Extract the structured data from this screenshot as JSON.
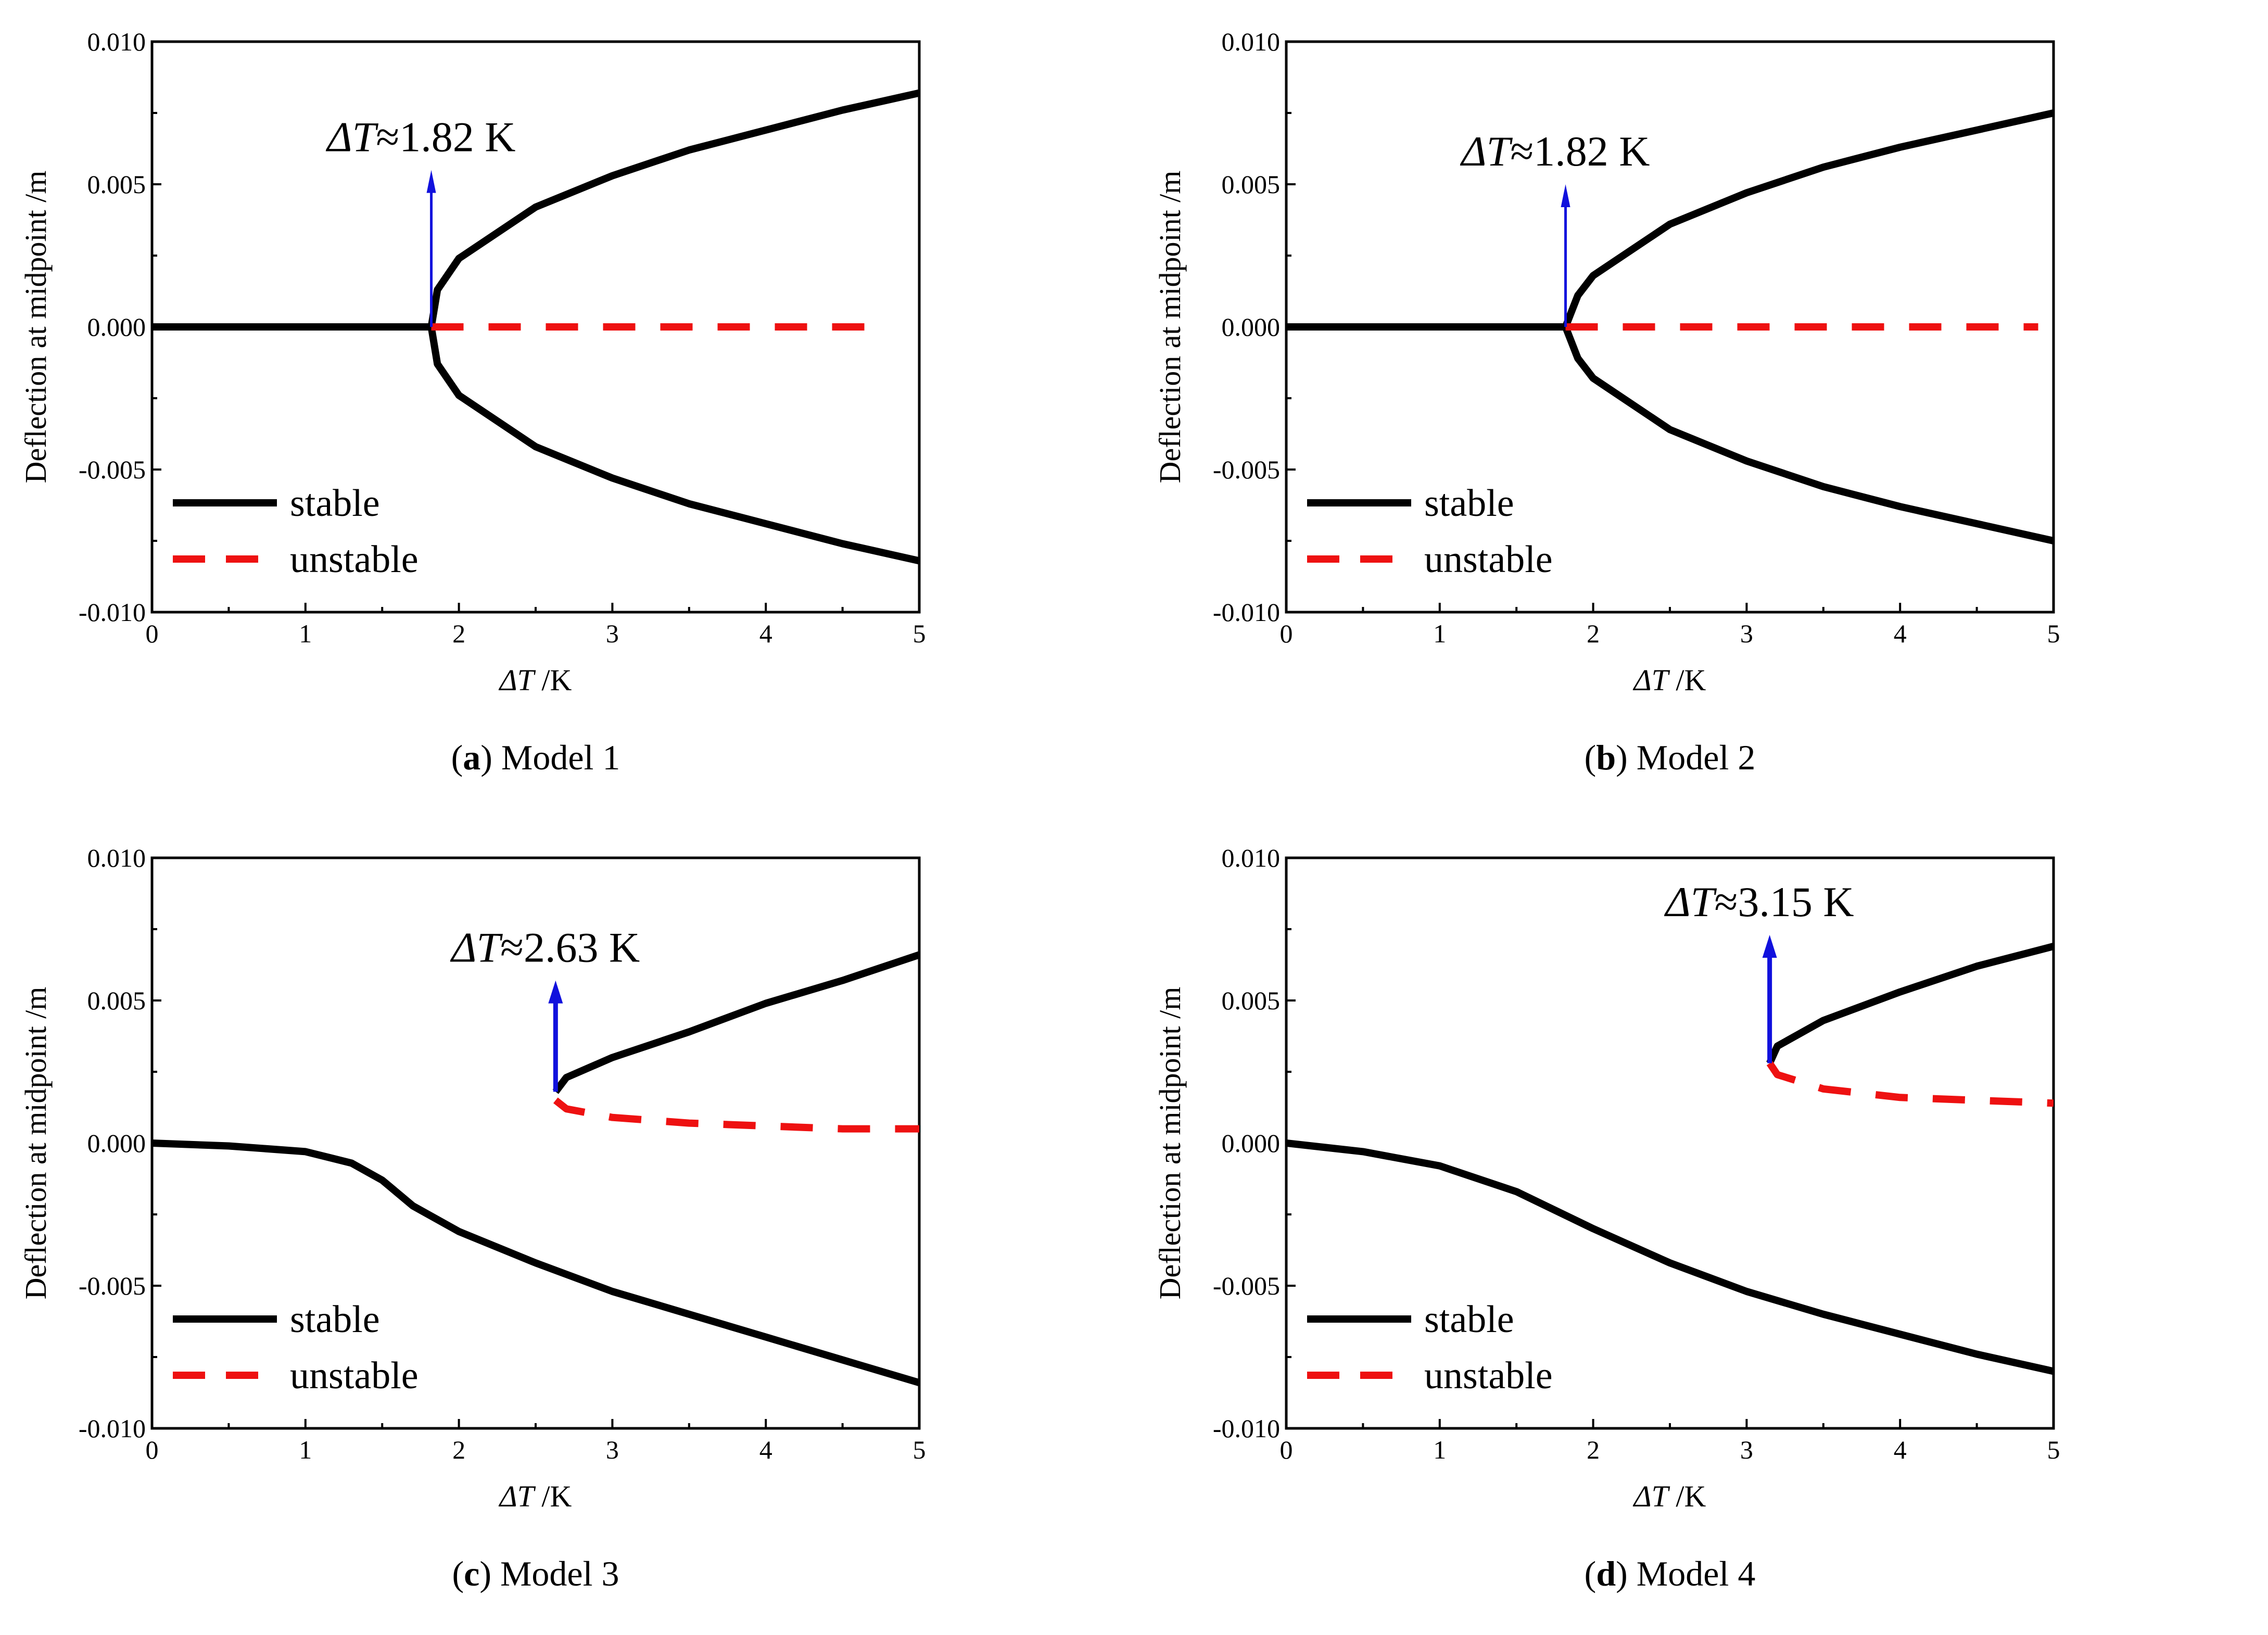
{
  "chart_data": [
    {
      "type": "line",
      "caption_letter": "a",
      "caption_text": "Model 1",
      "xlabel_italic": "ΔT",
      "xlabel_rest": " /K",
      "ylabel": "Deflection at midpoint /m",
      "xlim": [
        0,
        5
      ],
      "ylim": [
        -0.01,
        0.01
      ],
      "xticks": [
        0,
        1,
        2,
        3,
        4,
        5
      ],
      "yticks": [
        -0.01,
        -0.005,
        0.0,
        0.005,
        0.01
      ],
      "xtick_labels": [
        "0",
        "1",
        "2",
        "3",
        "4",
        "5"
      ],
      "ytick_labels": [
        "-0.010",
        "-0.005",
        "0.000",
        "0.005",
        "0.010"
      ],
      "legend": {
        "position": "bottom-left",
        "entries": [
          {
            "label": "stable",
            "style": "solid",
            "color": "#000000"
          },
          {
            "label": "unstable",
            "style": "dashed",
            "color": "#ee1111"
          }
        ]
      },
      "annotation": {
        "italic": "ΔT",
        "text": "≈1.82 K",
        "x": 1.82,
        "arrow_from_y": 0.0,
        "arrow_to_y": 0.0055,
        "arrow_color": "#1111dd"
      },
      "series": [
        {
          "name": "stable",
          "style": "solid",
          "color": "#000000",
          "points": [
            [
              0,
              0
            ],
            [
              1.82,
              0
            ]
          ]
        },
        {
          "name": "stable",
          "style": "solid",
          "color": "#000000",
          "points": [
            [
              1.82,
              0
            ],
            [
              1.86,
              0.0013
            ],
            [
              2.0,
              0.0024
            ],
            [
              2.5,
              0.0042
            ],
            [
              3.0,
              0.0053
            ],
            [
              3.5,
              0.0062
            ],
            [
              4.0,
              0.0069
            ],
            [
              4.5,
              0.0076
            ],
            [
              5.0,
              0.0082
            ]
          ]
        },
        {
          "name": "stable",
          "style": "solid",
          "color": "#000000",
          "points": [
            [
              1.82,
              0
            ],
            [
              1.86,
              -0.0013
            ],
            [
              2.0,
              -0.0024
            ],
            [
              2.5,
              -0.0042
            ],
            [
              3.0,
              -0.0053
            ],
            [
              3.5,
              -0.0062
            ],
            [
              4.0,
              -0.0069
            ],
            [
              4.5,
              -0.0076
            ],
            [
              5.0,
              -0.0082
            ]
          ]
        },
        {
          "name": "unstable",
          "style": "dashed",
          "color": "#ee1111",
          "points": [
            [
              1.82,
              0
            ],
            [
              4.8,
              0
            ]
          ]
        }
      ]
    },
    {
      "type": "line",
      "caption_letter": "b",
      "caption_text": "Model 2",
      "xlabel_italic": "ΔT",
      "xlabel_rest": " /K",
      "ylabel": "Deflection at midpoint /m",
      "xlim": [
        0,
        5
      ],
      "ylim": [
        -0.01,
        0.01
      ],
      "xticks": [
        0,
        1,
        2,
        3,
        4,
        5
      ],
      "yticks": [
        -0.01,
        -0.005,
        0.0,
        0.005,
        0.01
      ],
      "xtick_labels": [
        "0",
        "1",
        "2",
        "3",
        "4",
        "5"
      ],
      "ytick_labels": [
        "-0.010",
        "-0.005",
        "0.000",
        "0.005",
        "0.010"
      ],
      "legend": {
        "position": "bottom-left",
        "entries": [
          {
            "label": "stable",
            "style": "solid",
            "color": "#000000"
          },
          {
            "label": "unstable",
            "style": "dashed",
            "color": "#ee1111"
          }
        ]
      },
      "annotation": {
        "italic": "ΔT",
        "text": "≈1.82 K",
        "x": 1.82,
        "arrow_from_y": 0.0,
        "arrow_to_y": 0.005,
        "arrow_color": "#1111dd"
      },
      "series": [
        {
          "name": "stable",
          "style": "solid",
          "color": "#000000",
          "points": [
            [
              0,
              0
            ],
            [
              1.82,
              0
            ]
          ]
        },
        {
          "name": "stable",
          "style": "solid",
          "color": "#000000",
          "points": [
            [
              1.82,
              0
            ],
            [
              1.9,
              0.0011
            ],
            [
              2.0,
              0.0018
            ],
            [
              2.5,
              0.0036
            ],
            [
              3.0,
              0.0047
            ],
            [
              3.5,
              0.0056
            ],
            [
              4.0,
              0.0063
            ],
            [
              4.5,
              0.0069
            ],
            [
              5.0,
              0.0075
            ]
          ]
        },
        {
          "name": "stable",
          "style": "solid",
          "color": "#000000",
          "points": [
            [
              1.82,
              0
            ],
            [
              1.9,
              -0.0011
            ],
            [
              2.0,
              -0.0018
            ],
            [
              2.5,
              -0.0036
            ],
            [
              3.0,
              -0.0047
            ],
            [
              3.5,
              -0.0056
            ],
            [
              4.0,
              -0.0063
            ],
            [
              4.5,
              -0.0069
            ],
            [
              5.0,
              -0.0075
            ]
          ]
        },
        {
          "name": "unstable",
          "style": "dashed",
          "color": "#ee1111",
          "points": [
            [
              1.82,
              0
            ],
            [
              4.9,
              0
            ]
          ]
        }
      ]
    },
    {
      "type": "line",
      "caption_letter": "c",
      "caption_text": "Model 3",
      "xlabel_italic": "ΔT",
      "xlabel_rest": " /K",
      "ylabel": "Deflection at midpoint /m",
      "xlim": [
        0,
        5
      ],
      "ylim": [
        -0.01,
        0.01
      ],
      "xticks": [
        0,
        1,
        2,
        3,
        4,
        5
      ],
      "yticks": [
        -0.01,
        -0.005,
        0.0,
        0.005,
        0.01
      ],
      "xtick_labels": [
        "0",
        "1",
        "2",
        "3",
        "4",
        "5"
      ],
      "ytick_labels": [
        "-0.010",
        "-0.005",
        "0.000",
        "0.005",
        "0.010"
      ],
      "legend": {
        "position": "bottom-left",
        "entries": [
          {
            "label": "stable",
            "style": "solid",
            "color": "#000000"
          },
          {
            "label": "unstable",
            "style": "dashed",
            "color": "#ee1111"
          }
        ]
      },
      "annotation": {
        "italic": "ΔT",
        "text": "≈2.63 K",
        "x": 2.63,
        "arrow_from_y": 0.0018,
        "arrow_to_y": 0.0057,
        "arrow_color": "#1111dd"
      },
      "series": [
        {
          "name": "stable",
          "style": "solid",
          "color": "#000000",
          "points": [
            [
              0,
              0
            ],
            [
              0.5,
              -0.0001
            ],
            [
              1.0,
              -0.0003
            ],
            [
              1.3,
              -0.0007
            ],
            [
              1.5,
              -0.0013
            ],
            [
              1.7,
              -0.0022
            ],
            [
              2.0,
              -0.0031
            ],
            [
              2.5,
              -0.0042
            ],
            [
              3.0,
              -0.0052
            ],
            [
              3.5,
              -0.006
            ],
            [
              4.0,
              -0.0068
            ],
            [
              4.5,
              -0.0076
            ],
            [
              5.0,
              -0.0084
            ]
          ]
        },
        {
          "name": "stable",
          "style": "solid",
          "color": "#000000",
          "points": [
            [
              2.63,
              0.0018
            ],
            [
              2.7,
              0.0023
            ],
            [
              3.0,
              0.003
            ],
            [
              3.5,
              0.0039
            ],
            [
              4.0,
              0.0049
            ],
            [
              4.5,
              0.0057
            ],
            [
              5.0,
              0.0066
            ]
          ]
        },
        {
          "name": "unstable",
          "style": "dashed",
          "color": "#ee1111",
          "points": [
            [
              2.63,
              0.0015
            ],
            [
              2.7,
              0.0012
            ],
            [
              3.0,
              0.0009
            ],
            [
              3.5,
              0.0007
            ],
            [
              4.0,
              0.0006
            ],
            [
              4.5,
              0.0005
            ],
            [
              5.0,
              0.0005
            ]
          ]
        }
      ]
    },
    {
      "type": "line",
      "caption_letter": "d",
      "caption_text": "Model 4",
      "xlabel_italic": "ΔT",
      "xlabel_rest": " /K",
      "ylabel": "Deflection at midpoint /m",
      "xlim": [
        0,
        5
      ],
      "ylim": [
        -0.01,
        0.01
      ],
      "xticks": [
        0,
        1,
        2,
        3,
        4,
        5
      ],
      "yticks": [
        -0.01,
        -0.005,
        0.0,
        0.005,
        0.01
      ],
      "xtick_labels": [
        "0",
        "1",
        "2",
        "3",
        "4",
        "5"
      ],
      "ytick_labels": [
        "-0.010",
        "-0.005",
        "0.000",
        "0.005",
        "0.010"
      ],
      "legend": {
        "position": "bottom-left",
        "entries": [
          {
            "label": "stable",
            "style": "solid",
            "color": "#000000"
          },
          {
            "label": "unstable",
            "style": "dashed",
            "color": "#ee1111"
          }
        ]
      },
      "annotation": {
        "italic": "ΔT",
        "text": "≈3.15 K",
        "x": 3.15,
        "arrow_from_y": 0.0028,
        "arrow_to_y": 0.0073,
        "arrow_color": "#1111dd"
      },
      "series": [
        {
          "name": "stable",
          "style": "solid",
          "color": "#000000",
          "points": [
            [
              0,
              0
            ],
            [
              0.5,
              -0.0003
            ],
            [
              1.0,
              -0.0008
            ],
            [
              1.5,
              -0.0017
            ],
            [
              2.0,
              -0.003
            ],
            [
              2.5,
              -0.0042
            ],
            [
              3.0,
              -0.0052
            ],
            [
              3.5,
              -0.006
            ],
            [
              4.0,
              -0.0067
            ],
            [
              4.5,
              -0.0074
            ],
            [
              5.0,
              -0.008
            ]
          ]
        },
        {
          "name": "stable",
          "style": "solid",
          "color": "#000000",
          "points": [
            [
              3.15,
              0.0028
            ],
            [
              3.2,
              0.0034
            ],
            [
              3.5,
              0.0043
            ],
            [
              4.0,
              0.0053
            ],
            [
              4.5,
              0.0062
            ],
            [
              5.0,
              0.0069
            ]
          ]
        },
        {
          "name": "unstable",
          "style": "dashed",
          "color": "#ee1111",
          "points": [
            [
              3.15,
              0.0028
            ],
            [
              3.2,
              0.0024
            ],
            [
              3.5,
              0.0019
            ],
            [
              4.0,
              0.0016
            ],
            [
              4.5,
              0.0015
            ],
            [
              5.0,
              0.0014
            ]
          ]
        }
      ]
    }
  ]
}
